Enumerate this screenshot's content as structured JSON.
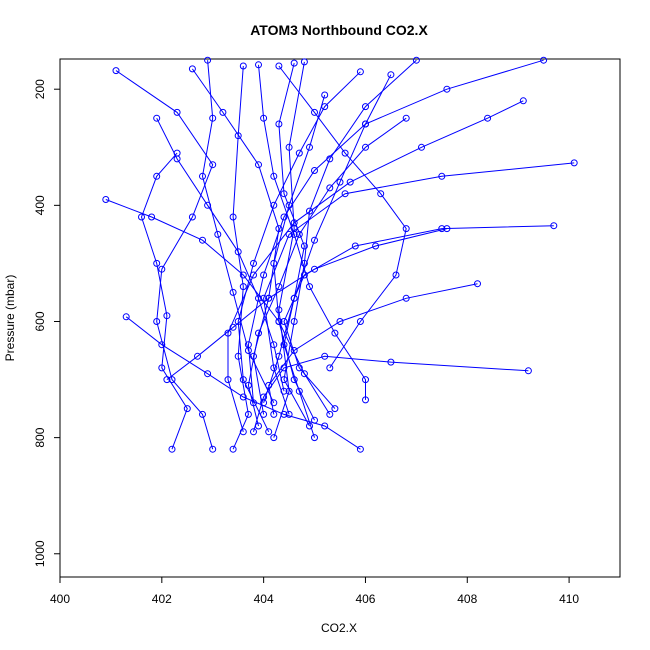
{
  "chart_data": {
    "type": "line",
    "title": "ATOM3 Northbound CO2.X",
    "xlabel": "CO2.X",
    "ylabel": "Pressure (mbar)",
    "xlim": [
      400,
      411
    ],
    "ylim": [
      1040,
      148
    ],
    "y_reversed": true,
    "x_ticks": [
      "400",
      "402",
      "404",
      "406",
      "408",
      "410"
    ],
    "y_ticks": [
      "200",
      "400",
      "600",
      "800",
      "1000"
    ],
    "grid": false,
    "legend": "none",
    "color": "#0000FF",
    "marker": "open-circle",
    "series": [
      {
        "points": [
          [
            401.1,
            168
          ],
          [
            402.3,
            240
          ],
          [
            403.0,
            330
          ],
          [
            402.6,
            420
          ],
          [
            402.0,
            510
          ],
          [
            401.9,
            600
          ],
          [
            402.2,
            700
          ],
          [
            402.8,
            760
          ],
          [
            403.0,
            820
          ]
        ]
      },
      {
        "points": [
          [
            404.6,
            155
          ],
          [
            404.3,
            260
          ],
          [
            404.4,
            380
          ],
          [
            404.8,
            470
          ],
          [
            404.6,
            560
          ],
          [
            404.4,
            640
          ],
          [
            404.7,
            720
          ],
          [
            405.0,
            800
          ]
        ]
      },
      {
        "points": [
          [
            403.6,
            160
          ],
          [
            403.5,
            280
          ],
          [
            403.4,
            420
          ],
          [
            403.6,
            540
          ],
          [
            403.5,
            660
          ],
          [
            403.7,
            760
          ],
          [
            403.4,
            820
          ]
        ]
      },
      {
        "points": [
          [
            407.0,
            150
          ],
          [
            406.0,
            230
          ],
          [
            405.3,
            320
          ],
          [
            404.9,
            410
          ],
          [
            404.8,
            500
          ],
          [
            404.6,
            600
          ],
          [
            404.4,
            700
          ],
          [
            404.9,
            780
          ]
        ]
      },
      {
        "points": [
          [
            410.1,
            327
          ],
          [
            407.5,
            350
          ],
          [
            405.6,
            380
          ],
          [
            404.5,
            450
          ],
          [
            404.0,
            560
          ],
          [
            404.2,
            680
          ],
          [
            404.5,
            760
          ]
        ]
      },
      {
        "points": [
          [
            402.6,
            165
          ],
          [
            403.2,
            240
          ],
          [
            403.9,
            330
          ],
          [
            404.3,
            440
          ],
          [
            404.1,
            560
          ],
          [
            403.8,
            660
          ],
          [
            404.0,
            760
          ]
        ]
      },
      {
        "points": [
          [
            400.9,
            390
          ],
          [
            401.8,
            420
          ],
          [
            402.8,
            460
          ],
          [
            403.6,
            520
          ],
          [
            404.3,
            600
          ],
          [
            404.8,
            690
          ],
          [
            405.3,
            760
          ]
        ]
      },
      {
        "points": [
          [
            409.5,
            150
          ],
          [
            407.6,
            200
          ],
          [
            406.0,
            260
          ],
          [
            405.0,
            340
          ],
          [
            404.4,
            420
          ],
          [
            404.0,
            520
          ],
          [
            403.7,
            640
          ],
          [
            403.8,
            740
          ]
        ]
      },
      {
        "points": [
          [
            405.2,
            210
          ],
          [
            404.9,
            300
          ],
          [
            404.5,
            400
          ],
          [
            404.2,
            500
          ],
          [
            404.3,
            600
          ],
          [
            404.6,
            700
          ],
          [
            405.0,
            770
          ]
        ]
      },
      {
        "points": [
          [
            403.9,
            158
          ],
          [
            404.0,
            250
          ],
          [
            404.2,
            350
          ],
          [
            404.6,
            450
          ],
          [
            404.9,
            540
          ],
          [
            405.4,
            620
          ],
          [
            406.0,
            700
          ],
          [
            406.0,
            735
          ]
        ]
      },
      {
        "points": [
          [
            409.1,
            220
          ],
          [
            408.4,
            250
          ],
          [
            407.1,
            300
          ],
          [
            405.7,
            360
          ],
          [
            404.6,
            430
          ],
          [
            403.8,
            520
          ],
          [
            403.3,
            620
          ],
          [
            403.3,
            700
          ],
          [
            403.6,
            790
          ]
        ]
      },
      {
        "points": [
          [
            402.3,
            310
          ],
          [
            401.9,
            350
          ],
          [
            401.6,
            420
          ],
          [
            401.9,
            500
          ],
          [
            402.1,
            590
          ],
          [
            402.0,
            680
          ],
          [
            402.5,
            750
          ],
          [
            402.2,
            820
          ]
        ]
      },
      {
        "points": [
          [
            408.2,
            535
          ],
          [
            406.8,
            560
          ],
          [
            405.5,
            600
          ],
          [
            404.6,
            650
          ],
          [
            404.1,
            710
          ],
          [
            404.2,
            760
          ]
        ]
      },
      {
        "points": [
          [
            409.2,
            685
          ],
          [
            406.5,
            670
          ],
          [
            405.2,
            660
          ],
          [
            404.4,
            680
          ],
          [
            404.0,
            730
          ],
          [
            403.8,
            790
          ]
        ]
      },
      {
        "points": [
          [
            409.7,
            435
          ],
          [
            407.5,
            440
          ],
          [
            405.8,
            470
          ],
          [
            404.8,
            520
          ],
          [
            404.4,
            600
          ],
          [
            404.7,
            680
          ],
          [
            405.4,
            750
          ]
        ]
      },
      {
        "points": [
          [
            406.8,
            250
          ],
          [
            406.0,
            300
          ],
          [
            405.3,
            370
          ],
          [
            404.7,
            450
          ],
          [
            404.3,
            540
          ],
          [
            403.9,
            620
          ],
          [
            403.7,
            710
          ],
          [
            403.9,
            780
          ]
        ]
      },
      {
        "points": [
          [
            405.9,
            170
          ],
          [
            405.2,
            230
          ],
          [
            404.7,
            310
          ],
          [
            404.2,
            400
          ],
          [
            403.8,
            500
          ],
          [
            403.5,
            600
          ],
          [
            403.6,
            700
          ],
          [
            404.1,
            790
          ]
        ]
      },
      {
        "points": [
          [
            401.3,
            592
          ],
          [
            402.0,
            640
          ],
          [
            402.9,
            690
          ],
          [
            403.6,
            730
          ],
          [
            404.4,
            760
          ],
          [
            405.2,
            780
          ],
          [
            405.9,
            820
          ]
        ]
      },
      {
        "points": [
          [
            404.3,
            160
          ],
          [
            405.0,
            240
          ],
          [
            405.6,
            310
          ],
          [
            406.3,
            380
          ],
          [
            406.8,
            440
          ],
          [
            406.6,
            520
          ],
          [
            405.9,
            600
          ],
          [
            405.3,
            680
          ]
        ]
      },
      {
        "points": [
          [
            402.9,
            150
          ],
          [
            403.0,
            250
          ],
          [
            402.8,
            350
          ],
          [
            403.1,
            450
          ],
          [
            403.4,
            550
          ],
          [
            403.7,
            650
          ],
          [
            404.2,
            740
          ]
        ]
      },
      {
        "points": [
          [
            407.6,
            440
          ],
          [
            406.2,
            470
          ],
          [
            405.0,
            510
          ],
          [
            404.1,
            560
          ],
          [
            403.4,
            610
          ],
          [
            402.7,
            660
          ],
          [
            402.1,
            700
          ]
        ]
      },
      {
        "points": [
          [
            404.8,
            153
          ],
          [
            404.5,
            300
          ],
          [
            404.6,
            440
          ],
          [
            404.3,
            580
          ],
          [
            404.5,
            720
          ],
          [
            404.2,
            800
          ]
        ]
      },
      {
        "points": [
          [
            401.9,
            250
          ],
          [
            402.3,
            320
          ],
          [
            402.9,
            400
          ],
          [
            403.5,
            480
          ],
          [
            403.9,
            560
          ],
          [
            404.2,
            640
          ],
          [
            404.4,
            720
          ]
        ]
      },
      {
        "points": [
          [
            406.5,
            175
          ],
          [
            406.0,
            260
          ],
          [
            405.5,
            360
          ],
          [
            405.0,
            460
          ],
          [
            404.6,
            560
          ],
          [
            404.3,
            660
          ],
          [
            404.0,
            740
          ]
        ]
      }
    ]
  }
}
